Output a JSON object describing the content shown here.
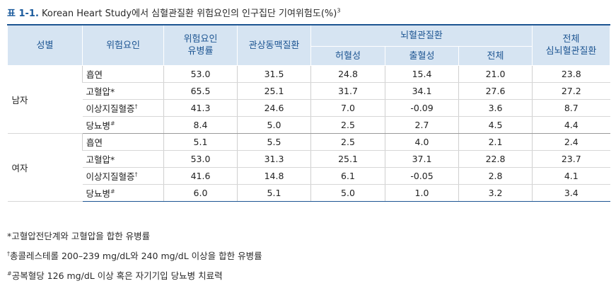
{
  "title": {
    "prefix": "표 1-1.",
    "text": " Korean Heart Study에서 심혈관질환 위험요인의 인구집단 기여위험도(%)",
    "sup": "3"
  },
  "headers": {
    "sex": "성별",
    "risk_factor": "위험요인",
    "prevalence_line1": "위험요인",
    "prevalence_line2": "유병률",
    "coronary": "관상동맥질환",
    "cerebro": "뇌혈관질환",
    "ischemic": "허혈성",
    "hemorrhagic": "출혈성",
    "cerebro_total": "전체",
    "total_line1": "전체",
    "total_line2": "심뇌혈관질환"
  },
  "groups": [
    {
      "sex": "남자",
      "rows": [
        {
          "factor": "흡연",
          "mark": "",
          "values": [
            "53.0",
            "31.5",
            "24.8",
            "15.4",
            "21.0",
            "23.8"
          ]
        },
        {
          "factor": "고혈압*",
          "mark": "",
          "values": [
            "65.5",
            "25.1",
            "31.7",
            "34.1",
            "27.6",
            "27.2"
          ]
        },
        {
          "factor": "이상지질혈증",
          "mark": "†",
          "values": [
            "41.3",
            "24.6",
            "7.0",
            "-0.09",
            "3.6",
            "8.7"
          ]
        },
        {
          "factor": "당뇨병",
          "mark": "#",
          "values": [
            "8.4",
            "5.0",
            "2.5",
            "2.7",
            "4.5",
            "4.4"
          ]
        }
      ]
    },
    {
      "sex": "여자",
      "rows": [
        {
          "factor": "흡연",
          "mark": "",
          "values": [
            "5.1",
            "5.5",
            "2.5",
            "4.0",
            "2.1",
            "2.4"
          ]
        },
        {
          "factor": "고혈압*",
          "mark": "",
          "values": [
            "53.0",
            "31.3",
            "25.1",
            "37.1",
            "22.8",
            "23.7"
          ]
        },
        {
          "factor": "이상지질혈증",
          "mark": "†",
          "values": [
            "41.6",
            "14.8",
            "6.1",
            "-0.05",
            "2.8",
            "4.1"
          ]
        },
        {
          "factor": "당뇨병",
          "mark": "#",
          "values": [
            "6.0",
            "5.1",
            "5.0",
            "1.0",
            "3.2",
            "3.4"
          ]
        }
      ]
    }
  ],
  "notes": [
    {
      "mark": "",
      "text": "*고혈압전단계와 고혈압을 합한 유병률"
    },
    {
      "mark": "†",
      "text": "총콜레스테롤 200–239 mg/dL와 240 mg/dL 이상을 합한 유병률"
    },
    {
      "mark": "#",
      "text": "공복혈당 126 mg/dL 이상 혹은 자기기입 당뇨병 치료력"
    }
  ]
}
